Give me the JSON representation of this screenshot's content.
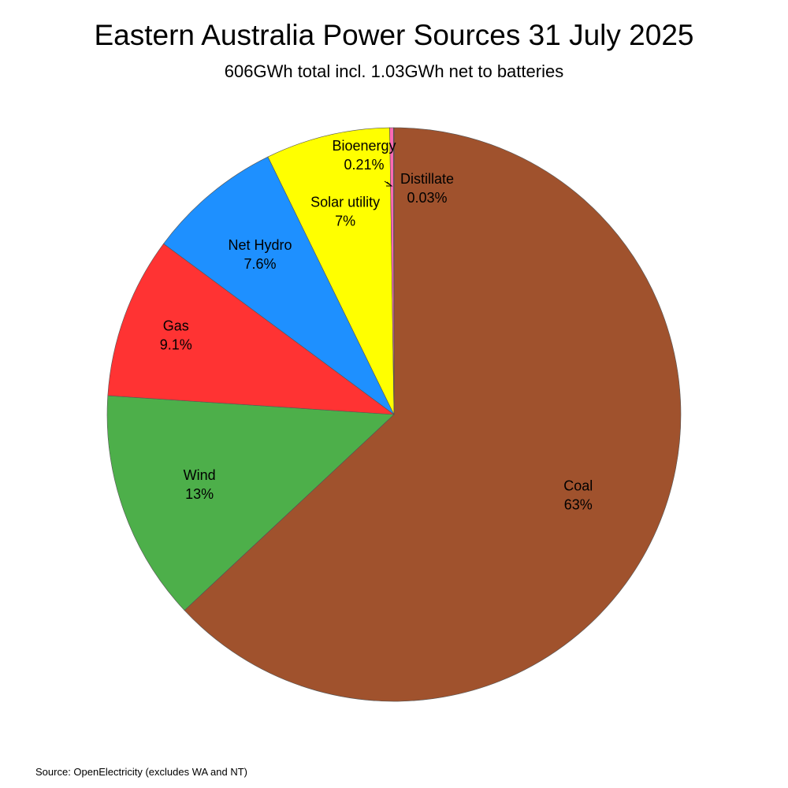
{
  "chart_data": {
    "type": "pie",
    "title": "Eastern Australia Power Sources 31 July 2025",
    "subtitle": "606GWh total incl. 1.03GWh net to batteries",
    "source": "Source: OpenElectricity (excludes WA and NT)",
    "start": "top",
    "direction": "clockwise",
    "slices": [
      {
        "name": "Coal",
        "label": "63%",
        "value": 63.0,
        "color": "#A0522D"
      },
      {
        "name": "Wind",
        "label": "13%",
        "value": 13.0,
        "color": "#4DAF4A"
      },
      {
        "name": "Gas",
        "label": "9.1%",
        "value": 9.1,
        "color": "#FF3333"
      },
      {
        "name": "Net Hydro",
        "label": "7.6%",
        "value": 7.6,
        "color": "#1E90FF"
      },
      {
        "name": "Solar utility",
        "label": "7%",
        "value": 7.0,
        "color": "#FFFF00"
      },
      {
        "name": "Bioenergy",
        "label": "0.21%",
        "value": 0.21,
        "color": "#FF69B4"
      },
      {
        "name": "Distillate",
        "label": "0.03%",
        "value": 0.03,
        "color": "#8B4513"
      }
    ]
  }
}
